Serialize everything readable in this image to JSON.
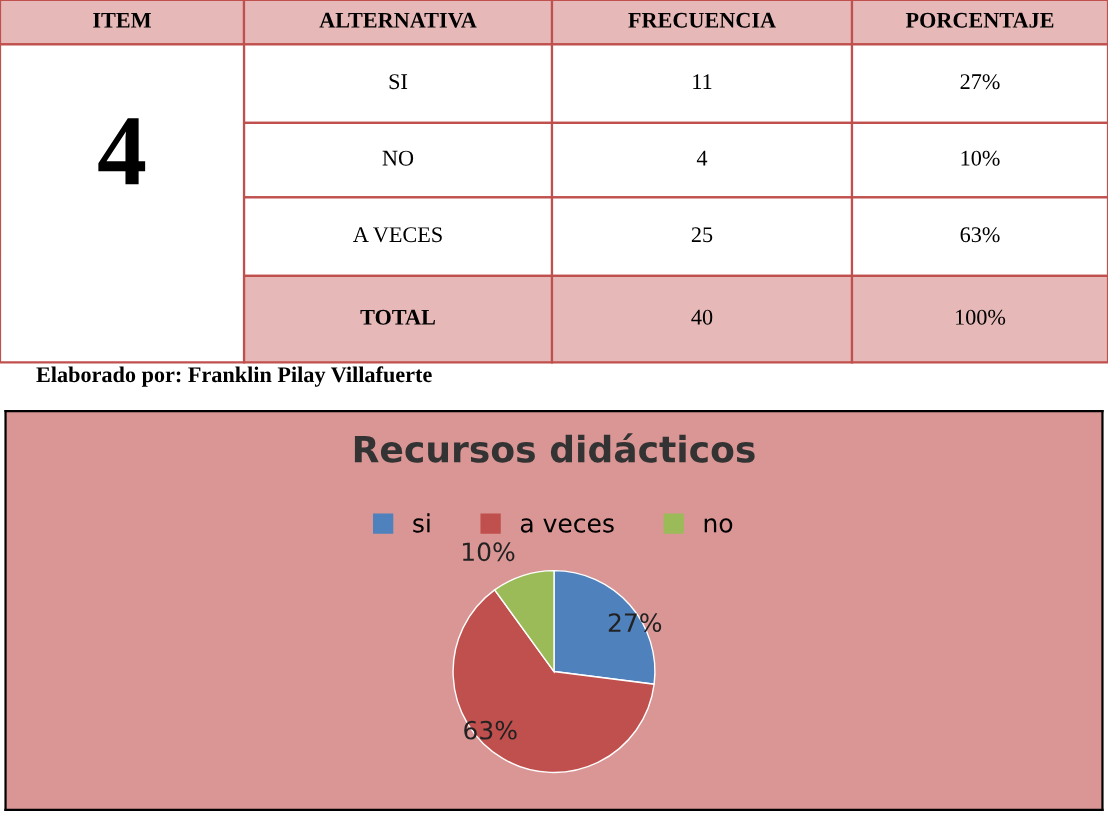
{
  "chart_data": [
    {
      "type": "other",
      "categories": [
        "ITEM",
        "ALTERNATIVA",
        "FRECUENCIA",
        "PORCENTAJE"
      ],
      "annotations": [
        "4",
        "SI",
        "11",
        "27%",
        "NO",
        "4",
        "10%",
        "A VECES",
        "25",
        "63%",
        "TOTAL",
        "40",
        "100%",
        "Elaborado por: Franklin Pilay Villafuerte"
      ]
    },
    {
      "type": "pie",
      "title": "Recursos didácticos",
      "categories": [
        "si",
        "a veces",
        "no"
      ],
      "values": [
        27,
        63,
        10
      ],
      "colors": [
        "#4f81bd",
        "#c0504d",
        "#9bbb59"
      ],
      "value_labels": [
        "27%",
        "63%",
        "10%"
      ],
      "legend": "top"
    }
  ]
}
